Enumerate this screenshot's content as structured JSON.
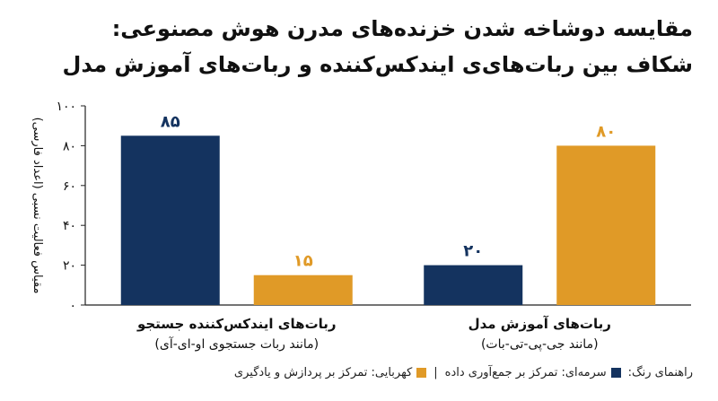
{
  "title_line1": "مقایسه دوشاخه شدن خزنده‌های مدرن هوش مصنوعی:",
  "title_line2": "شکاف بین ربات‌های‌ی ایندکس‌کننده و ربات‌های آموزش مدل",
  "legend": {
    "prefix": "راهنمای رنگ:",
    "navy_label": "سرمه‌ای: تمرکز بر جمع‌آوری داده",
    "separator": "|",
    "amber_label": "کهربایی: تمرکز بر پردازش و یادگیری"
  },
  "colors": {
    "navy": "#14335f",
    "amber": "#e09a27",
    "axis": "#222222",
    "text": "#111111"
  },
  "chart_data": {
    "type": "bar",
    "ylabel": "مقیاس فعالیت نسبی (اعداد فارسی)",
    "ylim": [
      0,
      100
    ],
    "yticks": [
      0,
      20,
      40,
      60,
      80,
      100
    ],
    "ytick_labels": [
      "۰",
      "۲۰",
      "۴۰",
      "۶۰",
      "۸۰",
      "۱۰۰"
    ],
    "grid": false,
    "legend_position": "bottom",
    "groups": [
      {
        "label_line1": "ربات‌های ایندکس‌کننده جستجو",
        "label_line2": "(مانند ربات جستجوی او-ای-آی)",
        "bars": [
          {
            "value": 85,
            "value_label": "۸۵",
            "color": "navy"
          },
          {
            "value": 15,
            "value_label": "۱۵",
            "color": "amber"
          }
        ]
      },
      {
        "label_line1": "ربات‌های آموزش مدل",
        "label_line2": "(مانند جی-پی-تی-بات)",
        "bars": [
          {
            "value": 20,
            "value_label": "۲۰",
            "color": "navy"
          },
          {
            "value": 80,
            "value_label": "۸۰",
            "color": "amber"
          }
        ]
      }
    ]
  }
}
